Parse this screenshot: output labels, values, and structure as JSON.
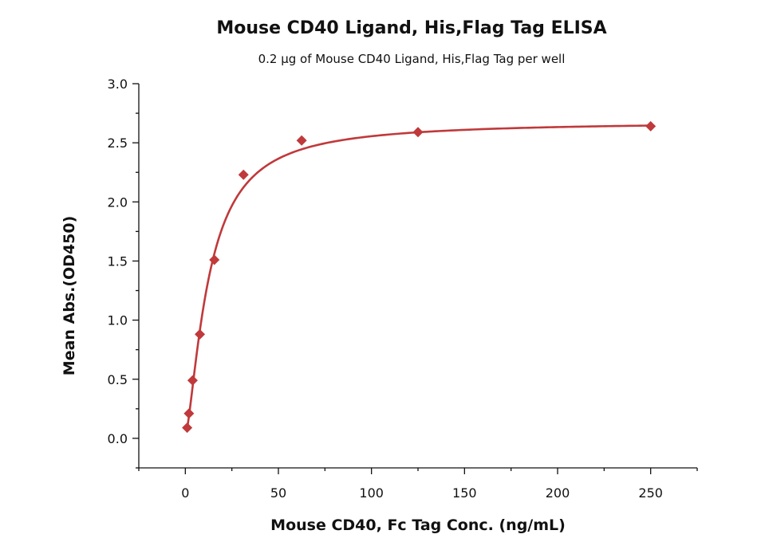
{
  "chart_data": {
    "type": "scatter",
    "title": "Mouse CD40 Ligand, His,Flag Tag ELISA",
    "subtitle": "0.2 µg of Mouse CD40 Ligand, His,Flag Tag per well",
    "xlabel": "Mouse CD40, Fc Tag Conc. (ng/mL)",
    "ylabel": "Mean Abs.(OD450)",
    "xlim": [
      -25,
      275
    ],
    "ylim": [
      -0.25,
      3.0
    ],
    "x_ticks": [
      0,
      50,
      100,
      150,
      200,
      250
    ],
    "x_tick_labels": [
      "0",
      "50",
      "100",
      "150",
      "200",
      "250"
    ],
    "y_ticks": [
      0.0,
      0.5,
      1.0,
      1.5,
      2.0,
      2.5,
      3.0
    ],
    "y_tick_labels": [
      "0.0",
      "0.5",
      "1.0",
      "1.5",
      "2.0",
      "2.5",
      "3.0"
    ],
    "grid": false,
    "marker_color": "#c0393b",
    "curve_color": "#c0393b",
    "series": [
      {
        "x": [
          0.98,
          1.95,
          3.9,
          7.8,
          15.6,
          31.25,
          62.5,
          125,
          250
        ],
        "y": [
          0.09,
          0.21,
          0.49,
          0.88,
          1.51,
          2.23,
          2.52,
          2.59,
          2.64
        ],
        "fit": "4PL"
      }
    ]
  }
}
